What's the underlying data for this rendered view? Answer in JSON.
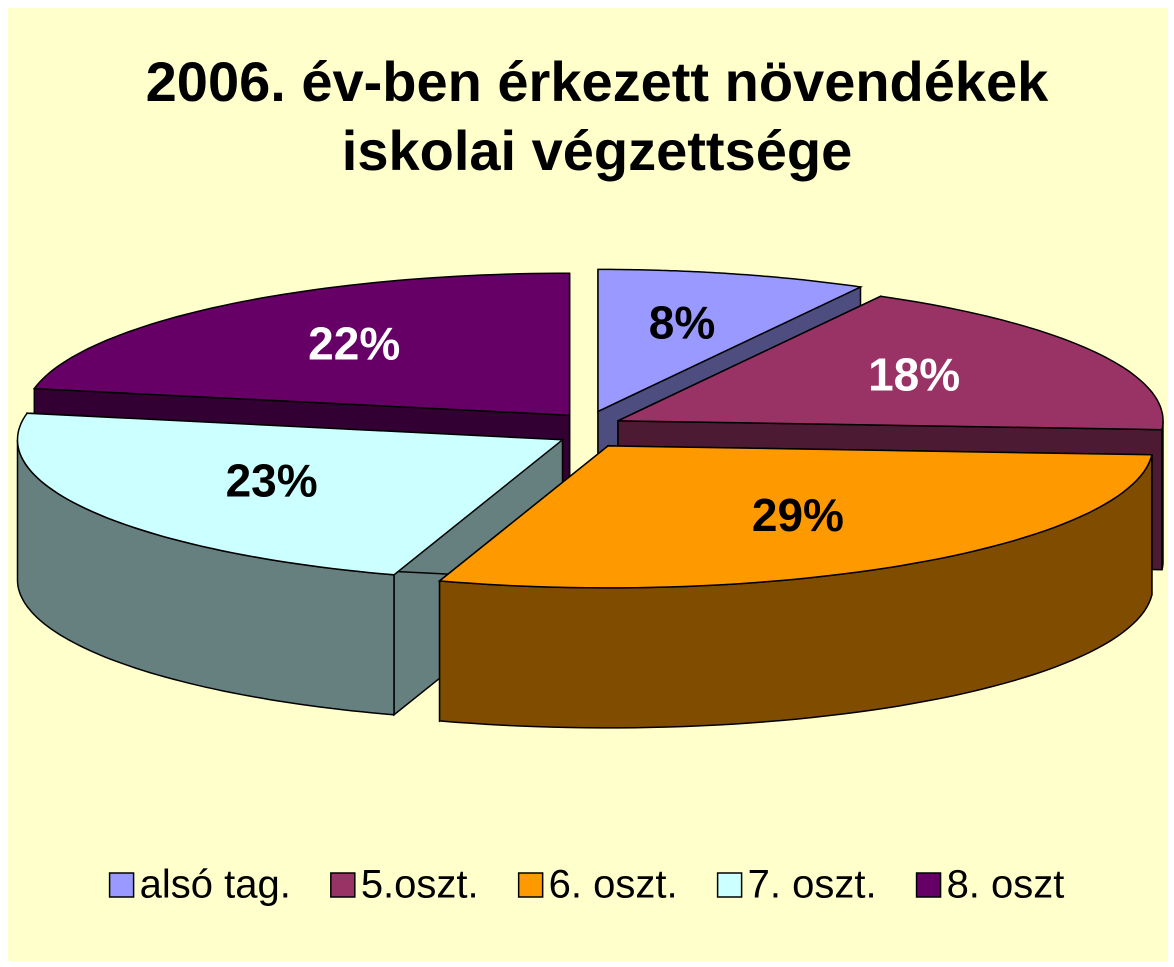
{
  "chart_data": {
    "type": "pie3d",
    "title": [
      "2006. év-ben érkezett növendékek",
      "iskolai végzettsége"
    ],
    "categories": [
      "alsó tag.",
      "5.oszt.",
      "6. oszt.",
      "7. oszt.",
      "8. oszt"
    ],
    "values": [
      8,
      18,
      29,
      23,
      22
    ],
    "value_labels": [
      "8%",
      "18%",
      "29%",
      "23%",
      "22%"
    ],
    "colors": [
      "#9999FF",
      "#993366",
      "#FF9900",
      "#CCFFFF",
      "#660066"
    ],
    "legend": "bottom"
  }
}
